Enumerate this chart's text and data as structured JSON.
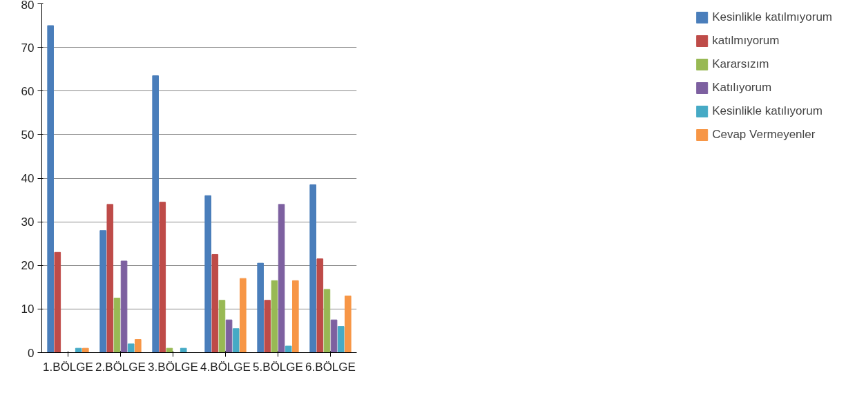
{
  "chart_data": {
    "type": "bar",
    "categories": [
      "1.BÖLGE",
      "2.BÖLGE",
      "3.BÖLGE",
      "4.BÖLGE",
      "5.BÖLGE",
      "6.BÖLGE"
    ],
    "series": [
      {
        "name": "Kesinlikle katılmıyorum",
        "color": "#4a7ebb",
        "values": [
          75,
          28,
          63.5,
          36,
          20.5,
          38.5
        ]
      },
      {
        "name": "katılmıyorum",
        "color": "#be4b48",
        "values": [
          23,
          34,
          34.5,
          22.5,
          12,
          21.5
        ]
      },
      {
        "name": "Kararsızım",
        "color": "#98b954",
        "values": [
          0,
          12.5,
          1,
          12,
          16.5,
          14.5
        ]
      },
      {
        "name": "Katılıyorum",
        "color": "#7d60a0",
        "values": [
          0,
          21,
          0,
          7.5,
          34,
          7.5
        ]
      },
      {
        "name": "Kesinlikle katılıyorum",
        "color": "#46aac5",
        "values": [
          1,
          2,
          1,
          5.5,
          1.5,
          6
        ]
      },
      {
        "name": "Cevap Vermeyenler",
        "color": "#f79646",
        "values": [
          1,
          3,
          0,
          17,
          16.5,
          13
        ]
      }
    ],
    "ylim": [
      0,
      80
    ],
    "yticks": [
      0,
      10,
      20,
      30,
      40,
      50,
      60,
      70,
      80
    ],
    "grid": "y",
    "legend": "right"
  }
}
